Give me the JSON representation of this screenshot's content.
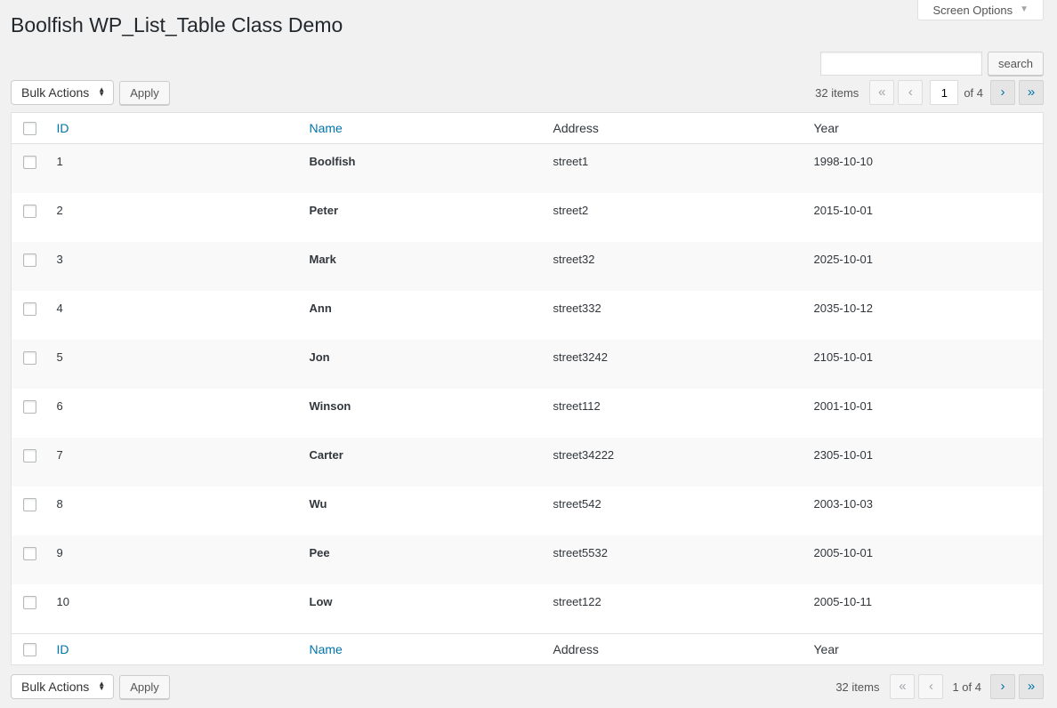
{
  "page": {
    "title": "Boolfish WP_List_Table Class Demo",
    "screen_options_label": "Screen Options"
  },
  "search": {
    "value": "",
    "placeholder": "",
    "button_label": "search"
  },
  "toolbar": {
    "bulk_actions_label": "Bulk Actions",
    "apply_label": "Apply"
  },
  "pagination": {
    "items_count": "32 items",
    "first_label": "«",
    "prev_label": "‹",
    "next_label": "›",
    "last_label": "»",
    "current_page": "1",
    "of_label": "of 4",
    "bottom_page_text": "1 of 4"
  },
  "table": {
    "columns": [
      "ID",
      "Name",
      "Address",
      "Year"
    ],
    "sortable_columns": [
      "ID",
      "Name"
    ],
    "rows": [
      {
        "id": "1",
        "name": "Boolfish",
        "address": "street1",
        "year": "1998-10-10"
      },
      {
        "id": "2",
        "name": "Peter",
        "address": "street2",
        "year": "2015-10-01"
      },
      {
        "id": "3",
        "name": "Mark",
        "address": "street32",
        "year": "2025-10-01"
      },
      {
        "id": "4",
        "name": "Ann",
        "address": "street332",
        "year": "2035-10-12"
      },
      {
        "id": "5",
        "name": "Jon",
        "address": "street3242",
        "year": "2105-10-01"
      },
      {
        "id": "6",
        "name": "Winson",
        "address": "street112",
        "year": "2001-10-01"
      },
      {
        "id": "7",
        "name": "Carter",
        "address": "street34222",
        "year": "2305-10-01"
      },
      {
        "id": "8",
        "name": "Wu",
        "address": "street542",
        "year": "2003-10-03"
      },
      {
        "id": "9",
        "name": "Pee",
        "address": "street5532",
        "year": "2005-10-01"
      },
      {
        "id": "10",
        "name": "Low",
        "address": "street122",
        "year": "2005-10-11"
      }
    ]
  },
  "colors": {
    "link": "#0073aa",
    "page_background": "#f1f1f1",
    "alternate_row_background": "#f9f9f9",
    "table_border": "#e1e1e1"
  }
}
